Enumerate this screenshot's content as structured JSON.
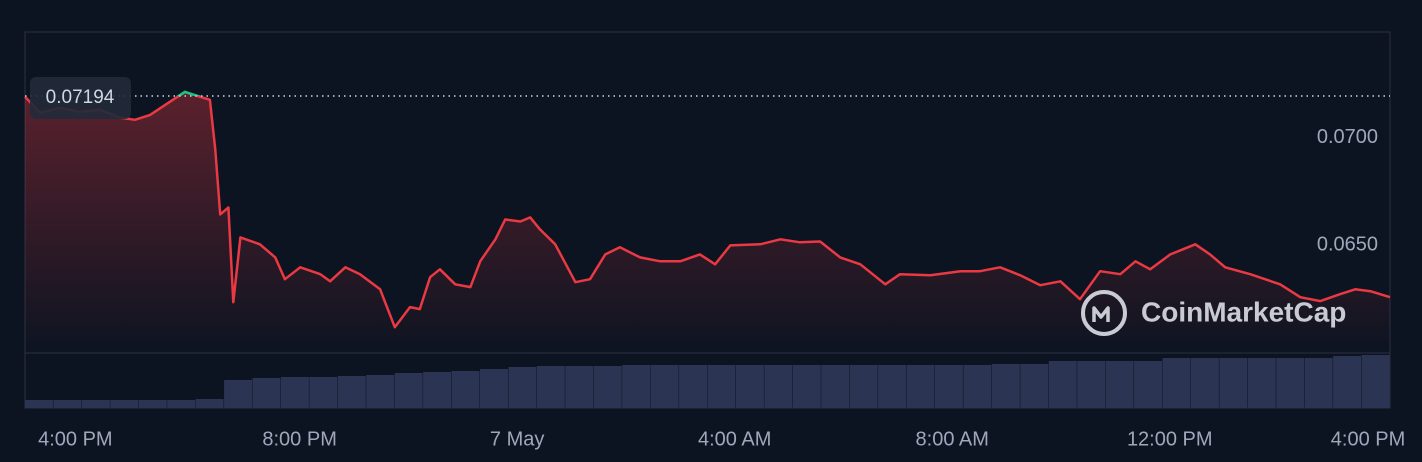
{
  "chart_data": {
    "type": "line",
    "color": "#ea3943",
    "up_color": "#16c784",
    "reference": 0.07194,
    "watermark": "CoinMarketCap",
    "x": [
      -1.05,
      -0.77,
      -0.4,
      -0.04,
      0.33,
      0.7,
      0.97,
      1.25,
      1.53,
      1.89,
      2.17,
      2.35,
      2.45,
      2.54,
      2.69,
      2.78,
      2.91,
      3.27,
      3.55,
      3.73,
      4.01,
      4.38,
      4.56,
      4.84,
      5.11,
      5.48,
      5.75,
      6.03,
      6.21,
      6.4,
      6.58,
      6.86,
      7.14,
      7.32,
      7.6,
      7.78,
      8.06,
      8.24,
      8.42,
      8.7,
      9.07,
      9.34,
      9.62,
      9.89,
      10.26,
      10.63,
      11.0,
      11.36,
      11.64,
      11.92,
      12.47,
      12.84,
      13.2,
      13.57,
      13.94,
      14.31,
      14.77,
      15.04,
      15.6,
      16.15,
      16.51,
      16.88,
      17.25,
      17.62,
      17.99,
      18.35,
      18.72,
      19.09,
      19.37,
      19.64,
      20.01,
      20.47,
      20.74,
      21.02,
      21.48,
      22.03,
      22.4,
      22.77,
      23.13,
      23.41,
      23.69,
      24.05
    ],
    "values": [
      0.0719,
      0.07116,
      0.07139,
      0.0712,
      0.0713,
      0.07093,
      0.07083,
      0.07106,
      0.07153,
      0.07213,
      0.0719,
      0.07176,
      0.06944,
      0.06644,
      0.06676,
      0.06236,
      0.06537,
      0.06505,
      0.06444,
      0.06343,
      0.06398,
      0.06366,
      0.06333,
      0.06398,
      0.06366,
      0.06296,
      0.0612,
      0.06213,
      0.06204,
      0.06352,
      0.06389,
      0.06319,
      0.06306,
      0.06426,
      0.06528,
      0.0662,
      0.06611,
      0.0663,
      0.06574,
      0.06505,
      0.06329,
      0.06343,
      0.06458,
      0.06491,
      0.06444,
      0.06426,
      0.06426,
      0.06458,
      0.06412,
      0.065,
      0.06505,
      0.06528,
      0.06514,
      0.06518,
      0.06444,
      0.06412,
      0.06319,
      0.06366,
      0.06361,
      0.0638,
      0.0638,
      0.06398,
      0.06361,
      0.06315,
      0.06333,
      0.0625,
      0.0638,
      0.06366,
      0.06426,
      0.06389,
      0.06458,
      0.06505,
      0.06458,
      0.06398,
      0.06366,
      0.06319,
      0.06259,
      0.06241,
      0.06273,
      0.06296,
      0.06287,
      0.06259
    ],
    "xlim": [
      -1.05,
      24.05
    ],
    "xticks": [
      {
        "value": 0,
        "label": "4:00 PM"
      },
      {
        "value": 4,
        "label": "8:00 PM"
      },
      {
        "value": 8,
        "label": "7 May"
      },
      {
        "value": 12,
        "label": "4:00 AM"
      },
      {
        "value": 16,
        "label": "8:00 AM"
      },
      {
        "value": 20,
        "label": "12:00 PM"
      },
      {
        "value": 24,
        "label": "4:00 PM"
      }
    ],
    "ylim": [
      0.06,
      0.07491
    ],
    "yticks": [
      {
        "value": 0.07,
        "label": "0.0700"
      },
      {
        "value": 0.065,
        "label": "0.0650"
      }
    ],
    "grid": true,
    "volume": {
      "color": "#2b3452",
      "lim": [
        0,
        53
      ],
      "values": [
        8,
        8,
        8,
        8,
        8,
        8,
        9,
        28,
        30,
        31,
        31,
        32,
        33,
        35,
        36,
        37,
        39,
        41,
        42,
        42,
        42,
        43,
        43,
        43,
        43,
        43,
        43,
        43,
        43,
        43,
        43,
        43,
        43,
        43,
        44,
        44,
        47,
        47,
        47,
        47,
        50,
        50,
        50,
        50,
        50,
        50,
        52,
        53
      ]
    }
  }
}
